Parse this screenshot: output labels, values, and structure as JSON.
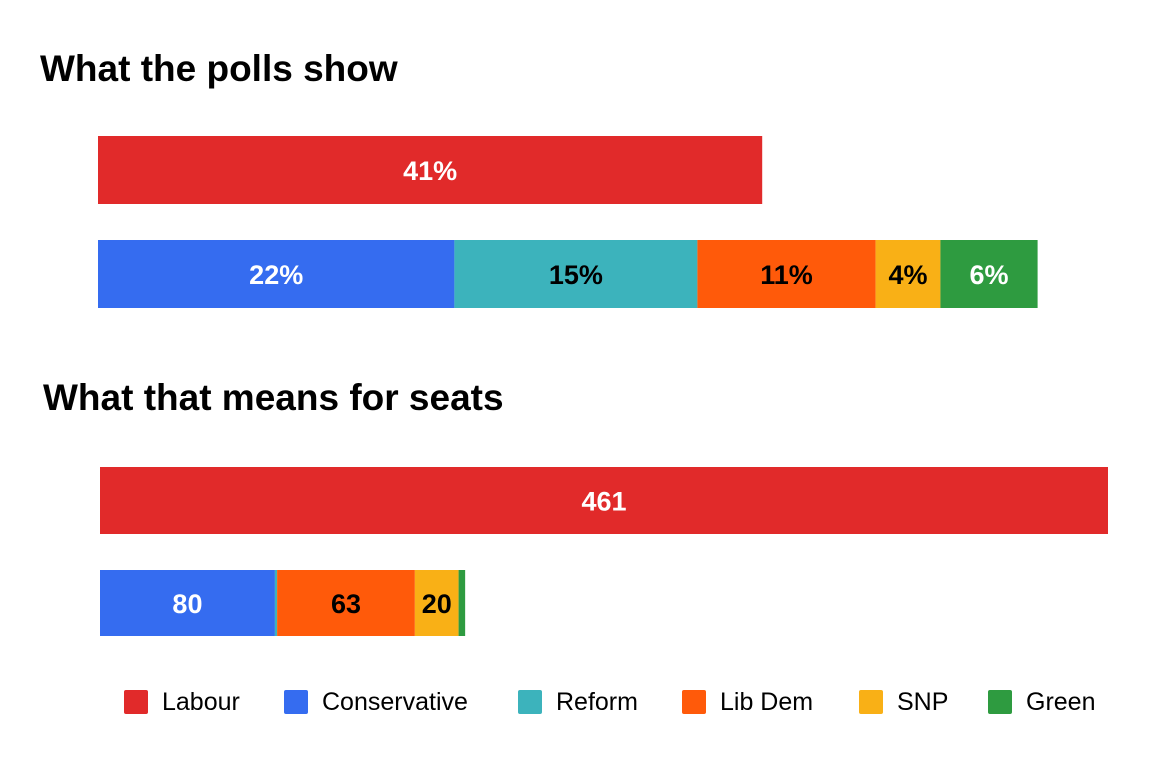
{
  "chart_data": [
    {
      "type": "bar",
      "orientation": "horizontal",
      "stacked": true,
      "title": "What the polls show",
      "unit": "%",
      "categories": [
        "row1",
        "row2"
      ],
      "series": [
        {
          "name": "Labour",
          "values": [
            41,
            0
          ]
        },
        {
          "name": "Conservative",
          "values": [
            0,
            22
          ]
        },
        {
          "name": "Reform",
          "values": [
            0,
            15
          ]
        },
        {
          "name": "Lib Dem",
          "values": [
            0,
            11
          ]
        },
        {
          "name": "SNP",
          "values": [
            0,
            4
          ]
        },
        {
          "name": "Green",
          "values": [
            0,
            6
          ]
        }
      ],
      "data_labels": {
        "Labour": "41%",
        "Conservative": "22%",
        "Reform": "15%",
        "Lib Dem": "11%",
        "SNP": "4%",
        "Green": "6%"
      },
      "xlim": [
        0,
        100
      ],
      "grid": false
    },
    {
      "type": "bar",
      "orientation": "horizontal",
      "stacked": true,
      "title": "What that means for seats",
      "categories": [
        "row1",
        "row2"
      ],
      "series": [
        {
          "name": "Labour",
          "values": [
            461,
            0
          ]
        },
        {
          "name": "Conservative",
          "values": [
            0,
            80
          ]
        },
        {
          "name": "Reform",
          "values": [
            0,
            1
          ]
        },
        {
          "name": "Lib Dem",
          "values": [
            0,
            63
          ]
        },
        {
          "name": "SNP",
          "values": [
            0,
            20
          ]
        },
        {
          "name": "Green",
          "values": [
            0,
            3
          ]
        }
      ],
      "data_labels": {
        "Labour": "461",
        "Conservative": "80",
        "Reform": "",
        "Lib Dem": "63",
        "SNP": "20",
        "Green": ""
      },
      "xlim": [
        0,
        461
      ],
      "grid": false
    }
  ],
  "legend": {
    "placement": "bottom",
    "items": [
      {
        "name": "Labour",
        "color": "#e12a2a"
      },
      {
        "name": "Conservative",
        "color": "#356cf0"
      },
      {
        "name": "Reform",
        "color": "#3cb3bc"
      },
      {
        "name": "Lib Dem",
        "color": "#ff5a0a"
      },
      {
        "name": "SNP",
        "color": "#f9b016"
      },
      {
        "name": "Green",
        "color": "#2e9b40"
      }
    ]
  },
  "colors": {
    "Labour": "#e12a2a",
    "Conservative": "#356cf0",
    "Reform": "#3cb3bc",
    "Lib Dem": "#ff5a0a",
    "SNP": "#f9b016",
    "Green": "#2e9b40"
  },
  "label_colors": {
    "Labour": "#ffffff",
    "Conservative": "#ffffff",
    "Reform": "#000000",
    "Lib Dem": "#000000",
    "SNP": "#000000",
    "Green": "#ffffff"
  }
}
